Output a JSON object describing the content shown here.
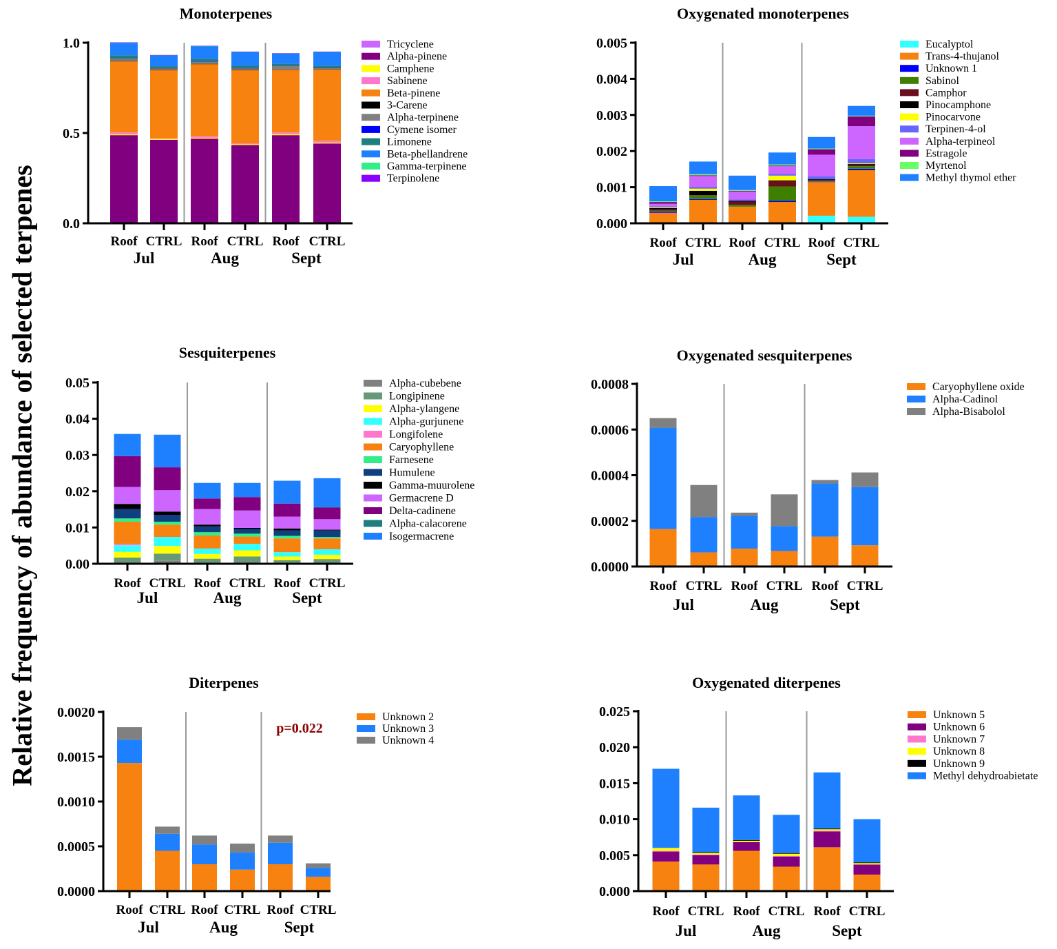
{
  "figure": {
    "ylabel": "Relative frequency of abundance of  selected terpenes"
  },
  "chart_data": [
    {
      "type": "bar",
      "stacked": true,
      "title": "Monoterpenes",
      "categories": [
        "Roof",
        "CTRL",
        "Roof",
        "CTRL",
        "Roof",
        "CTRL"
      ],
      "groups": [
        "Jul",
        "Aug",
        "Sept"
      ],
      "ylim": [
        0,
        1.0
      ],
      "yticks": [
        "0.0",
        "0.5",
        "1.0"
      ],
      "ytick_values": [
        0,
        0.5,
        1.0
      ],
      "legend_position": "right",
      "series": [
        {
          "name": "Tricyclene",
          "color": "#cc66ff",
          "values": [
            0.003,
            0.002,
            0.002,
            0.002,
            0.003,
            0.002
          ]
        },
        {
          "name": "Alpha-pinene",
          "color": "#800080",
          "values": [
            0.485,
            0.46,
            0.467,
            0.432,
            0.485,
            0.44
          ]
        },
        {
          "name": "Camphene",
          "color": "#ffff00",
          "values": [
            0.005,
            0.005,
            0.005,
            0.004,
            0.006,
            0.005
          ]
        },
        {
          "name": "Sabinene",
          "color": "#ff77cc",
          "values": [
            0.01,
            0.005,
            0.008,
            0.004,
            0.009,
            0.01
          ]
        },
        {
          "name": "Beta-pinene",
          "color": "#f7820f",
          "values": [
            0.395,
            0.378,
            0.4,
            0.408,
            0.348,
            0.396
          ]
        },
        {
          "name": "3-Carene",
          "color": "#000000",
          "values": [
            0.001,
            0.001,
            0.001,
            0.001,
            0.001,
            0.001
          ]
        },
        {
          "name": "Alpha-terpinene",
          "color": "#808080",
          "values": [
            0.013,
            0.008,
            0.012,
            0.008,
            0.02,
            0.006
          ]
        },
        {
          "name": "Cymene isomer",
          "color": "#0000ff",
          "values": [
            0.001,
            0.001,
            0.001,
            0.001,
            0.001,
            0.001
          ]
        },
        {
          "name": "Limonene",
          "color": "#1f7f7f",
          "values": [
            0.017,
            0.01,
            0.015,
            0.012,
            0.01,
            0.012
          ]
        },
        {
          "name": "Beta-phellandrene",
          "color": "#1e80ff",
          "values": [
            0.07,
            0.06,
            0.07,
            0.077,
            0.057,
            0.076
          ]
        },
        {
          "name": "Gamma-terpinene",
          "color": "#33ee88",
          "values": [
            0.001,
            0.001,
            0.001,
            0.001,
            0.001,
            0.001
          ]
        },
        {
          "name": "Terpinolene",
          "color": "#8800ff",
          "values": [
            0.001,
            0.001,
            0.001,
            0.001,
            0.001,
            0.001
          ]
        }
      ]
    },
    {
      "type": "bar",
      "stacked": true,
      "title": "Oxygenated monoterpenes",
      "categories": [
        "Roof",
        "CTRL",
        "Roof",
        "CTRL",
        "Roof",
        "CTRL"
      ],
      "groups": [
        "Jul",
        "Aug",
        "Sept"
      ],
      "ylim": [
        0,
        0.005
      ],
      "yticks": [
        "0.000",
        "0.001",
        "0.002",
        "0.003",
        "0.004",
        "0.005"
      ],
      "ytick_values": [
        0,
        0.001,
        0.002,
        0.003,
        0.004,
        0.005
      ],
      "legend_position": "right",
      "series": [
        {
          "name": "Eucalyptol",
          "color": "#33ffff",
          "values": [
            0,
            0,
            0,
            0,
            0.00021,
            0.00018
          ]
        },
        {
          "name": "Trans-4-thujanol",
          "color": "#f7820f",
          "values": [
            0.00029,
            0.00065,
            0.00046,
            0.00059,
            0.00093,
            0.00129
          ]
        },
        {
          "name": "Unknown 1",
          "color": "#0000ff",
          "values": [
            3e-05,
            2e-05,
            0,
            3e-05,
            1e-05,
            4e-05
          ]
        },
        {
          "name": "Sabinol",
          "color": "#3f7f00",
          "values": [
            3e-05,
            0.0001,
            5e-05,
            0.0004,
            2e-05,
            7e-05
          ]
        },
        {
          "name": "Camphor",
          "color": "#6b0f1f",
          "values": [
            4e-05,
            1e-05,
            9e-05,
            0.00015,
            3e-05,
            3e-05
          ]
        },
        {
          "name": "Pinocamphone",
          "color": "#000000",
          "values": [
            3e-05,
            0.00012,
            2e-05,
            2e-05,
            2e-05,
            3e-05
          ]
        },
        {
          "name": "Pinocarvone",
          "color": "#ffff00",
          "values": [
            2e-05,
            6e-05,
            0,
            0.00013,
            0,
            2e-05
          ]
        },
        {
          "name": "Terpinen-4-ol",
          "color": "#6666ff",
          "values": [
            3e-05,
            5e-05,
            4e-05,
            5e-05,
            8e-05,
            0.00012
          ]
        },
        {
          "name": "Alpha-terpineol",
          "color": "#cc66ff",
          "values": [
            7e-05,
            0.0003,
            0.00022,
            0.00021,
            0.0006,
            0.00091
          ]
        },
        {
          "name": "Estragole",
          "color": "#800080",
          "values": [
            5e-05,
            2e-05,
            2e-05,
            2e-05,
            0.00015,
            0.00027
          ]
        },
        {
          "name": "Myrtenol",
          "color": "#66ff66",
          "values": [
            2e-05,
            3e-05,
            2e-05,
            3e-05,
            2e-05,
            2e-05
          ]
        },
        {
          "name": "Methyl thymol ether",
          "color": "#1e80ff",
          "values": [
            0.00042,
            0.00035,
            0.0004,
            0.00033,
            0.00032,
            0.00027
          ]
        }
      ]
    },
    {
      "type": "bar",
      "stacked": true,
      "title": "Sesquiterpenes",
      "categories": [
        "Roof",
        "CTRL",
        "Roof",
        "CTRL",
        "Roof",
        "CTRL"
      ],
      "groups": [
        "Jul",
        "Aug",
        "Sept"
      ],
      "ylim": [
        0,
        0.05
      ],
      "yticks": [
        "0.00",
        "0.01",
        "0.02",
        "0.03",
        "0.04",
        "0.05"
      ],
      "ytick_values": [
        0,
        0.01,
        0.02,
        0.03,
        0.04,
        0.05
      ],
      "legend_position": "right",
      "series": [
        {
          "name": "Alpha-cubebene",
          "color": "#808080",
          "values": [
            0.0005,
            0.0008,
            0.0003,
            0.0005,
            0.0003,
            0.0004
          ]
        },
        {
          "name": "Longipinene",
          "color": "#669977",
          "values": [
            0.0012,
            0.002,
            0.0011,
            0.0015,
            0.0007,
            0.0009
          ]
        },
        {
          "name": "Alpha-ylangene",
          "color": "#ffff00",
          "values": [
            0.0016,
            0.0021,
            0.0013,
            0.0017,
            0.001,
            0.0012
          ]
        },
        {
          "name": "Alpha-gurjunene",
          "color": "#33ffff",
          "values": [
            0.0018,
            0.0025,
            0.0015,
            0.0018,
            0.0012,
            0.0015
          ]
        },
        {
          "name": "Longifolene",
          "color": "#ff77cc",
          "values": [
            0.0004,
            0,
            0,
            0,
            0,
            0
          ]
        },
        {
          "name": "Caryophyllene",
          "color": "#f7820f",
          "values": [
            0.0061,
            0.0034,
            0.0036,
            0.002,
            0.0038,
            0.003
          ]
        },
        {
          "name": "Farnesene",
          "color": "#33ee88",
          "values": [
            0.0009,
            0.0008,
            0.0009,
            0.0008,
            0.0007,
            0.0004
          ]
        },
        {
          "name": "Humulene",
          "color": "#0f3f7f",
          "values": [
            0.0026,
            0.0019,
            0.0016,
            0.0013,
            0.0015,
            0.0018
          ]
        },
        {
          "name": "Gamma-muurolene",
          "color": "#000000",
          "values": [
            0.0014,
            0.0009,
            0.0005,
            0.0003,
            0.0005,
            0.0002
          ]
        },
        {
          "name": "Germacrene D",
          "color": "#cc66ff",
          "values": [
            0.0047,
            0.0059,
            0.0043,
            0.0048,
            0.0033,
            0.0029
          ]
        },
        {
          "name": "Delta-cadinene",
          "color": "#800080",
          "values": [
            0.0085,
            0.0063,
            0.0029,
            0.0037,
            0.0036,
            0.0032
          ]
        },
        {
          "name": "Alpha-calacorene",
          "color": "#1f7f7f",
          "values": [
            0,
            0,
            0,
            0,
            0,
            0.0001
          ]
        },
        {
          "name": "Isogermacrene",
          "color": "#1e80ff",
          "values": [
            0.0061,
            0.009,
            0.0043,
            0.0039,
            0.0063,
            0.008
          ]
        }
      ]
    },
    {
      "type": "bar",
      "stacked": true,
      "title": "Oxygenated sesquiterpenes",
      "categories": [
        "Roof",
        "CTRL",
        "Roof",
        "CTRL",
        "Roof",
        "CTRL"
      ],
      "groups": [
        "Jul",
        "Aug",
        "Sept"
      ],
      "ylim": [
        0,
        0.0008
      ],
      "yticks": [
        "0.0000",
        "0.0002",
        "0.0004",
        "0.0006",
        "0.0008"
      ],
      "ytick_values": [
        0,
        0.0002,
        0.0004,
        0.0006,
        0.0008
      ],
      "legend_position": "right",
      "series": [
        {
          "name": "Caryophyllene oxide",
          "color": "#f7820f",
          "values": [
            0.000164,
            6.2e-05,
            7.8e-05,
            6.8e-05,
            0.000131,
            9.3e-05
          ]
        },
        {
          "name": "Alpha-Cadinol",
          "color": "#1e80ff",
          "values": [
            0.000444,
            0.000155,
            0.000144,
            0.000109,
            0.000233,
            0.000255
          ]
        },
        {
          "name": "Alpha-Bisabolol",
          "color": "#808080",
          "values": [
            4.2e-05,
            0.00014,
            1.4e-05,
            0.000139,
            1.5e-05,
            6.4e-05
          ]
        }
      ]
    },
    {
      "type": "bar",
      "stacked": true,
      "title": "Diterpenes",
      "categories": [
        "Roof",
        "CTRL",
        "Roof",
        "CTRL",
        "Roof",
        "CTRL"
      ],
      "groups": [
        "Jul",
        "Aug",
        "Sept"
      ],
      "ylim": [
        0,
        0.002
      ],
      "yticks": [
        "0.0000",
        "0.0005",
        "0.0010",
        "0.0015",
        "0.0020"
      ],
      "ytick_values": [
        0,
        0.0005,
        0.001,
        0.0015,
        0.002
      ],
      "legend_position": "right",
      "annotation": "p=0.022",
      "series": [
        {
          "name": "Unknown 2",
          "color": "#f7820f",
          "values": [
            0.00143,
            0.00045,
            0.0003,
            0.00024,
            0.0003,
            0.00016
          ]
        },
        {
          "name": "Unknown 3",
          "color": "#1e80ff",
          "values": [
            0.00026,
            0.00019,
            0.00022,
            0.00019,
            0.00024,
            0.0001
          ]
        },
        {
          "name": "Unknown 4",
          "color": "#808080",
          "values": [
            0.00014,
            8e-05,
            0.0001,
            0.0001,
            8e-05,
            5e-05
          ]
        }
      ]
    },
    {
      "type": "bar",
      "stacked": true,
      "title": "Oxygenated diterpenes",
      "categories": [
        "Roof",
        "CTRL",
        "Roof",
        "CTRL",
        "Roof",
        "CTRL"
      ],
      "groups": [
        "Jul",
        "Aug",
        "Sept"
      ],
      "ylim": [
        0,
        0.025
      ],
      "yticks": [
        "0.000",
        "0.005",
        "0.010",
        "0.015",
        "0.020",
        "0.025"
      ],
      "ytick_values": [
        0,
        0.005,
        0.01,
        0.015,
        0.02,
        0.025
      ],
      "legend_position": "right",
      "series": [
        {
          "name": "Unknown 5",
          "color": "#f7820f",
          "values": [
            0.0041,
            0.0037,
            0.0056,
            0.0034,
            0.0061,
            0.0023
          ]
        },
        {
          "name": "Unknown 6",
          "color": "#800080",
          "values": [
            0.0014,
            0.0013,
            0.0012,
            0.0014,
            0.0022,
            0.0014
          ]
        },
        {
          "name": "Unknown 7",
          "color": "#ff77cc",
          "values": [
            0.0001,
            0.0001,
            0,
            0.0001,
            0.0001,
            0
          ]
        },
        {
          "name": "Unknown 8",
          "color": "#ffff00",
          "values": [
            0.0004,
            0.0002,
            0.0002,
            0.0003,
            0.0002,
            0.0002
          ]
        },
        {
          "name": "Unknown 9",
          "color": "#000000",
          "values": [
            0,
            0.0001,
            0.0001,
            0.0001,
            0.0001,
            0.0001
          ]
        },
        {
          "name": "Methyl dehydroabietate",
          "color": "#1e80ff",
          "values": [
            0.011,
            0.0062,
            0.0062,
            0.0053,
            0.0078,
            0.006
          ]
        }
      ]
    }
  ]
}
